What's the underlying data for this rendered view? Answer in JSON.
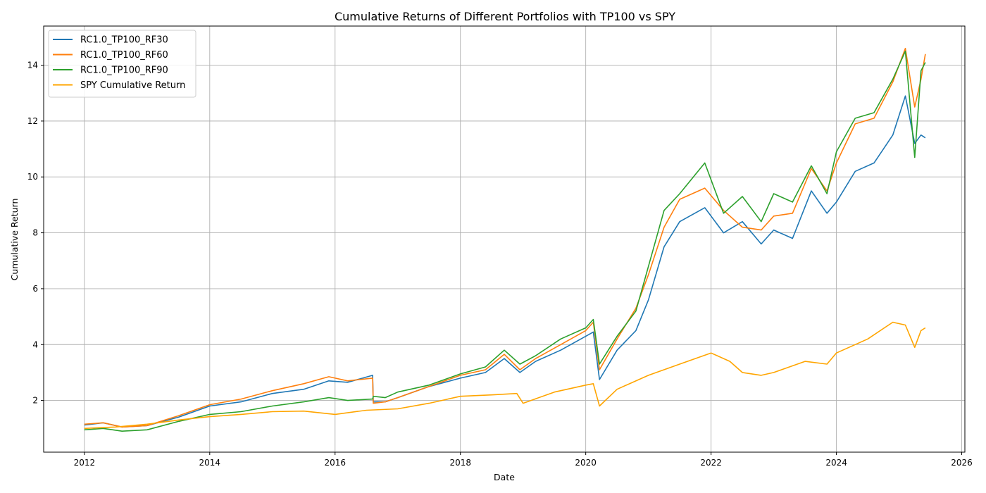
{
  "chart_data": {
    "type": "line",
    "title": "Cumulative Returns of Different Portfolios with TP100 vs SPY",
    "xlabel": "Date",
    "ylabel": "Cumulative Return",
    "xlim": [
      2011.35,
      2026.05
    ],
    "ylim": [
      0.15,
      15.4
    ],
    "xticks": [
      2012,
      2014,
      2016,
      2018,
      2020,
      2022,
      2024,
      2026
    ],
    "yticks": [
      2,
      4,
      6,
      8,
      10,
      12,
      14
    ],
    "grid": true,
    "legend_position": "top-left",
    "series": [
      {
        "name": "RC1.0_TP100_RF30",
        "color": "#1f77b4",
        "points": [
          [
            2012.0,
            1.12
          ],
          [
            2012.3,
            1.2
          ],
          [
            2012.6,
            1.05
          ],
          [
            2013.0,
            1.1
          ],
          [
            2013.5,
            1.4
          ],
          [
            2014.0,
            1.8
          ],
          [
            2014.5,
            1.95
          ],
          [
            2015.0,
            2.25
          ],
          [
            2015.5,
            2.4
          ],
          [
            2015.9,
            2.7
          ],
          [
            2016.2,
            2.65
          ],
          [
            2016.6,
            2.9
          ],
          [
            2016.61,
            1.95
          ],
          [
            2016.8,
            1.95
          ],
          [
            2017.0,
            2.1
          ],
          [
            2017.5,
            2.5
          ],
          [
            2018.0,
            2.8
          ],
          [
            2018.4,
            3.0
          ],
          [
            2018.7,
            3.5
          ],
          [
            2018.95,
            3.0
          ],
          [
            2019.2,
            3.4
          ],
          [
            2019.6,
            3.8
          ],
          [
            2020.0,
            4.3
          ],
          [
            2020.12,
            4.45
          ],
          [
            2020.22,
            2.75
          ],
          [
            2020.5,
            3.8
          ],
          [
            2020.8,
            4.5
          ],
          [
            2021.0,
            5.6
          ],
          [
            2021.25,
            7.5
          ],
          [
            2021.5,
            8.4
          ],
          [
            2021.9,
            8.9
          ],
          [
            2022.2,
            8.0
          ],
          [
            2022.5,
            8.4
          ],
          [
            2022.8,
            7.6
          ],
          [
            2023.0,
            8.1
          ],
          [
            2023.3,
            7.8
          ],
          [
            2023.6,
            9.5
          ],
          [
            2023.85,
            8.7
          ],
          [
            2024.0,
            9.1
          ],
          [
            2024.3,
            10.2
          ],
          [
            2024.6,
            10.5
          ],
          [
            2024.9,
            11.5
          ],
          [
            2025.1,
            12.9
          ],
          [
            2025.25,
            11.2
          ],
          [
            2025.35,
            11.5
          ],
          [
            2025.42,
            11.4
          ]
        ]
      },
      {
        "name": "RC1.0_TP100_RF60",
        "color": "#ff7f0e",
        "points": [
          [
            2012.0,
            1.15
          ],
          [
            2012.3,
            1.2
          ],
          [
            2012.6,
            1.05
          ],
          [
            2013.0,
            1.1
          ],
          [
            2013.5,
            1.45
          ],
          [
            2014.0,
            1.85
          ],
          [
            2014.5,
            2.05
          ],
          [
            2015.0,
            2.35
          ],
          [
            2015.5,
            2.6
          ],
          [
            2015.9,
            2.85
          ],
          [
            2016.2,
            2.7
          ],
          [
            2016.6,
            2.8
          ],
          [
            2016.61,
            1.9
          ],
          [
            2016.8,
            1.95
          ],
          [
            2017.0,
            2.1
          ],
          [
            2017.5,
            2.5
          ],
          [
            2018.0,
            2.9
          ],
          [
            2018.4,
            3.1
          ],
          [
            2018.7,
            3.65
          ],
          [
            2018.95,
            3.1
          ],
          [
            2019.2,
            3.5
          ],
          [
            2019.6,
            4.0
          ],
          [
            2020.0,
            4.5
          ],
          [
            2020.12,
            4.8
          ],
          [
            2020.22,
            3.1
          ],
          [
            2020.5,
            4.2
          ],
          [
            2020.8,
            5.3
          ],
          [
            2021.0,
            6.5
          ],
          [
            2021.25,
            8.2
          ],
          [
            2021.5,
            9.2
          ],
          [
            2021.9,
            9.6
          ],
          [
            2022.2,
            8.8
          ],
          [
            2022.5,
            8.2
          ],
          [
            2022.8,
            8.1
          ],
          [
            2023.0,
            8.6
          ],
          [
            2023.3,
            8.7
          ],
          [
            2023.6,
            10.3
          ],
          [
            2023.85,
            9.5
          ],
          [
            2024.0,
            10.5
          ],
          [
            2024.3,
            11.9
          ],
          [
            2024.6,
            12.1
          ],
          [
            2024.9,
            13.4
          ],
          [
            2025.1,
            14.6
          ],
          [
            2025.25,
            12.5
          ],
          [
            2025.35,
            13.5
          ],
          [
            2025.42,
            14.4
          ]
        ]
      },
      {
        "name": "RC1.0_TP100_RF90",
        "color": "#2ca02c",
        "points": [
          [
            2012.0,
            0.95
          ],
          [
            2012.3,
            1.0
          ],
          [
            2012.6,
            0.9
          ],
          [
            2013.0,
            0.95
          ],
          [
            2013.5,
            1.25
          ],
          [
            2014.0,
            1.5
          ],
          [
            2014.5,
            1.6
          ],
          [
            2015.0,
            1.8
          ],
          [
            2015.5,
            1.95
          ],
          [
            2015.9,
            2.1
          ],
          [
            2016.2,
            2.0
          ],
          [
            2016.6,
            2.05
          ],
          [
            2016.61,
            2.15
          ],
          [
            2016.8,
            2.1
          ],
          [
            2017.0,
            2.3
          ],
          [
            2017.5,
            2.55
          ],
          [
            2018.0,
            2.95
          ],
          [
            2018.4,
            3.2
          ],
          [
            2018.7,
            3.8
          ],
          [
            2018.95,
            3.3
          ],
          [
            2019.2,
            3.6
          ],
          [
            2019.6,
            4.2
          ],
          [
            2020.0,
            4.6
          ],
          [
            2020.12,
            4.9
          ],
          [
            2020.22,
            3.3
          ],
          [
            2020.5,
            4.3
          ],
          [
            2020.8,
            5.2
          ],
          [
            2021.0,
            6.8
          ],
          [
            2021.25,
            8.8
          ],
          [
            2021.5,
            9.4
          ],
          [
            2021.9,
            10.5
          ],
          [
            2022.2,
            8.7
          ],
          [
            2022.5,
            9.3
          ],
          [
            2022.8,
            8.4
          ],
          [
            2023.0,
            9.4
          ],
          [
            2023.3,
            9.1
          ],
          [
            2023.6,
            10.4
          ],
          [
            2023.85,
            9.4
          ],
          [
            2024.0,
            10.9
          ],
          [
            2024.3,
            12.1
          ],
          [
            2024.6,
            12.3
          ],
          [
            2024.9,
            13.5
          ],
          [
            2025.1,
            14.5
          ],
          [
            2025.25,
            10.7
          ],
          [
            2025.35,
            13.8
          ],
          [
            2025.42,
            14.1
          ]
        ]
      },
      {
        "name": "SPY Cumulative Return",
        "color": "#ffa500",
        "points": [
          [
            2012.0,
            1.0
          ],
          [
            2012.5,
            1.05
          ],
          [
            2013.0,
            1.15
          ],
          [
            2013.5,
            1.3
          ],
          [
            2014.0,
            1.42
          ],
          [
            2014.5,
            1.5
          ],
          [
            2015.0,
            1.6
          ],
          [
            2015.5,
            1.62
          ],
          [
            2016.0,
            1.5
          ],
          [
            2016.5,
            1.65
          ],
          [
            2017.0,
            1.7
          ],
          [
            2017.5,
            1.9
          ],
          [
            2018.0,
            2.15
          ],
          [
            2018.5,
            2.2
          ],
          [
            2018.9,
            2.25
          ],
          [
            2019.0,
            1.9
          ],
          [
            2019.5,
            2.3
          ],
          [
            2020.0,
            2.55
          ],
          [
            2020.12,
            2.6
          ],
          [
            2020.22,
            1.8
          ],
          [
            2020.5,
            2.4
          ],
          [
            2021.0,
            2.9
          ],
          [
            2021.5,
            3.3
          ],
          [
            2022.0,
            3.7
          ],
          [
            2022.3,
            3.4
          ],
          [
            2022.5,
            3.0
          ],
          [
            2022.8,
            2.9
          ],
          [
            2023.0,
            3.0
          ],
          [
            2023.5,
            3.4
          ],
          [
            2023.85,
            3.3
          ],
          [
            2024.0,
            3.7
          ],
          [
            2024.5,
            4.2
          ],
          [
            2024.9,
            4.8
          ],
          [
            2025.1,
            4.7
          ],
          [
            2025.25,
            3.9
          ],
          [
            2025.35,
            4.5
          ],
          [
            2025.42,
            4.6
          ]
        ]
      }
    ]
  }
}
